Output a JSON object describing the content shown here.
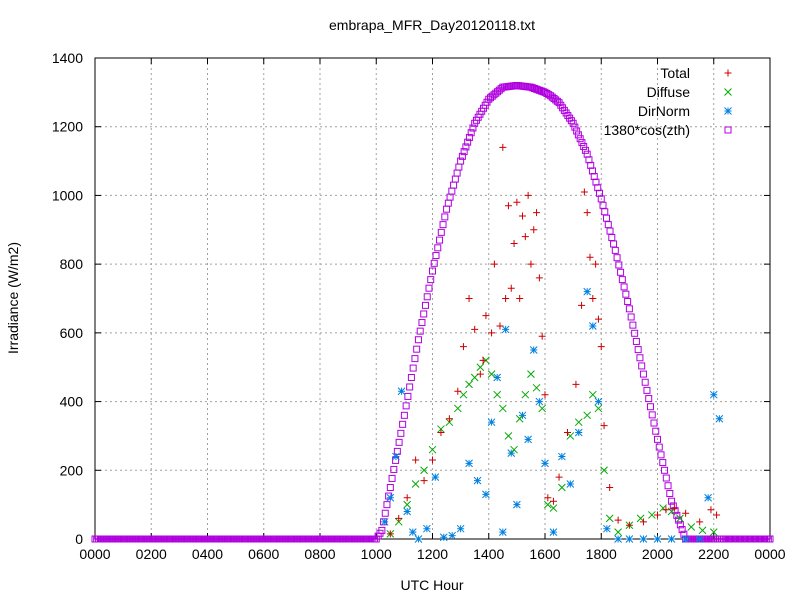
{
  "chart_data": {
    "type": "scatter",
    "title": "embrapa_MFR_Day20120118.txt",
    "xlabel": "UTC Hour",
    "ylabel": "Irradiance (W/m2)",
    "xlim": [
      0,
      24
    ],
    "ylim": [
      0,
      1400
    ],
    "x_tick_values": [
      0,
      2,
      4,
      6,
      8,
      10,
      12,
      14,
      16,
      18,
      20,
      22,
      24
    ],
    "x_tick_labels": [
      "0000",
      "0200",
      "0400",
      "0600",
      "0800",
      "1000",
      "1200",
      "1400",
      "1600",
      "1800",
      "2000",
      "2200",
      "0000"
    ],
    "y_tick_values": [
      0,
      200,
      400,
      600,
      800,
      1000,
      1200,
      1400
    ],
    "y_tick_labels": [
      "0",
      "200",
      "400",
      "600",
      "800",
      "1000",
      "1200",
      "1400"
    ],
    "grid": true,
    "legend_position": "top-right",
    "series": [
      {
        "name": "Total",
        "color": "#cc0000",
        "marker": "plus",
        "x": [
          10.5,
          10.8,
          11.1,
          11.4,
          11.7,
          12.0,
          12.3,
          12.6,
          12.9,
          13.1,
          13.3,
          13.5,
          13.7,
          13.8,
          13.9,
          14.1,
          14.2,
          14.4,
          14.5,
          14.6,
          14.7,
          14.8,
          14.9,
          15.0,
          15.1,
          15.2,
          15.3,
          15.4,
          15.5,
          15.6,
          15.7,
          15.8,
          15.9,
          16.0,
          16.1,
          16.3,
          16.5,
          16.8,
          17.1,
          17.3,
          17.4,
          17.5,
          17.6,
          17.7,
          17.8,
          17.9,
          18.0,
          18.1,
          18.3,
          18.6,
          19.0,
          19.5,
          20.0,
          20.3,
          20.6,
          21.0,
          21.5,
          21.9,
          22.1
        ],
        "y": [
          15,
          60,
          120,
          230,
          170,
          230,
          310,
          350,
          430,
          560,
          700,
          610,
          480,
          520,
          650,
          600,
          800,
          620,
          1140,
          700,
          970,
          730,
          860,
          980,
          700,
          940,
          880,
          1000,
          800,
          900,
          950,
          760,
          590,
          420,
          120,
          110,
          180,
          310,
          450,
          680,
          1010,
          950,
          820,
          700,
          800,
          640,
          560,
          330,
          150,
          55,
          40,
          50,
          70,
          85,
          90,
          75,
          50,
          85,
          70
        ]
      },
      {
        "name": "Diffuse",
        "color": "#00aa00",
        "marker": "cross",
        "x": [
          10.5,
          10.8,
          11.1,
          11.4,
          11.7,
          12.0,
          12.3,
          12.6,
          12.9,
          13.1,
          13.3,
          13.5,
          13.7,
          13.9,
          14.1,
          14.3,
          14.5,
          14.7,
          14.9,
          15.1,
          15.3,
          15.5,
          15.7,
          15.9,
          16.1,
          16.3,
          16.6,
          16.9,
          17.2,
          17.5,
          17.7,
          17.9,
          18.1,
          18.3,
          18.6,
          19.0,
          19.4,
          19.8,
          20.2,
          20.5,
          20.8,
          21.2,
          21.6,
          22.0
        ],
        "y": [
          15,
          50,
          100,
          160,
          200,
          260,
          320,
          340,
          380,
          420,
          450,
          470,
          500,
          520,
          480,
          420,
          380,
          300,
          260,
          350,
          420,
          480,
          440,
          380,
          100,
          90,
          150,
          300,
          340,
          360,
          420,
          380,
          200,
          60,
          20,
          40,
          60,
          70,
          90,
          80,
          60,
          35,
          25,
          20
        ]
      },
      {
        "name": "DirNorm",
        "color": "#0080e0",
        "marker": "star",
        "x": [
          10.3,
          10.5,
          10.7,
          10.9,
          11.1,
          11.3,
          11.5,
          11.8,
          12.1,
          12.4,
          12.7,
          13.0,
          13.3,
          13.6,
          13.9,
          14.1,
          14.3,
          14.5,
          14.6,
          14.8,
          15.0,
          15.2,
          15.4,
          15.6,
          15.8,
          16.0,
          16.3,
          16.6,
          16.9,
          17.2,
          17.5,
          17.7,
          17.9,
          18.2,
          18.6,
          19.0,
          19.5,
          20.0,
          20.5,
          21.0,
          21.5,
          21.8,
          22.0,
          22.2
        ],
        "y": [
          50,
          120,
          240,
          430,
          80,
          20,
          0,
          30,
          180,
          5,
          10,
          30,
          220,
          170,
          130,
          340,
          470,
          20,
          610,
          250,
          100,
          360,
          290,
          550,
          400,
          220,
          20,
          240,
          160,
          310,
          720,
          620,
          400,
          30,
          0,
          0,
          0,
          0,
          0,
          0,
          0,
          120,
          420,
          350
        ]
      },
      {
        "name": "1380*cos(zth)",
        "color": "#b000e0",
        "marker": "square",
        "x": [
          0,
          2,
          4,
          6,
          8,
          10.0,
          10.2,
          10.5,
          11.0,
          11.5,
          12.0,
          12.5,
          13.0,
          13.5,
          14.0,
          14.5,
          15.0,
          15.5,
          16.0,
          16.2,
          16.5,
          17.0,
          17.5,
          18.0,
          18.5,
          19.0,
          19.5,
          20.0,
          20.5,
          21.0,
          21.5,
          22.0,
          22.2,
          22.4,
          24
        ],
        "y": [
          0,
          0,
          0,
          0,
          0,
          0,
          25,
          150,
          360,
          580,
          780,
          960,
          1100,
          1210,
          1280,
          1315,
          1320,
          1315,
          1300,
          1290,
          1270,
          1210,
          1120,
          990,
          840,
          670,
          480,
          290,
          110,
          0,
          0,
          0,
          0,
          0,
          0
        ]
      }
    ]
  }
}
